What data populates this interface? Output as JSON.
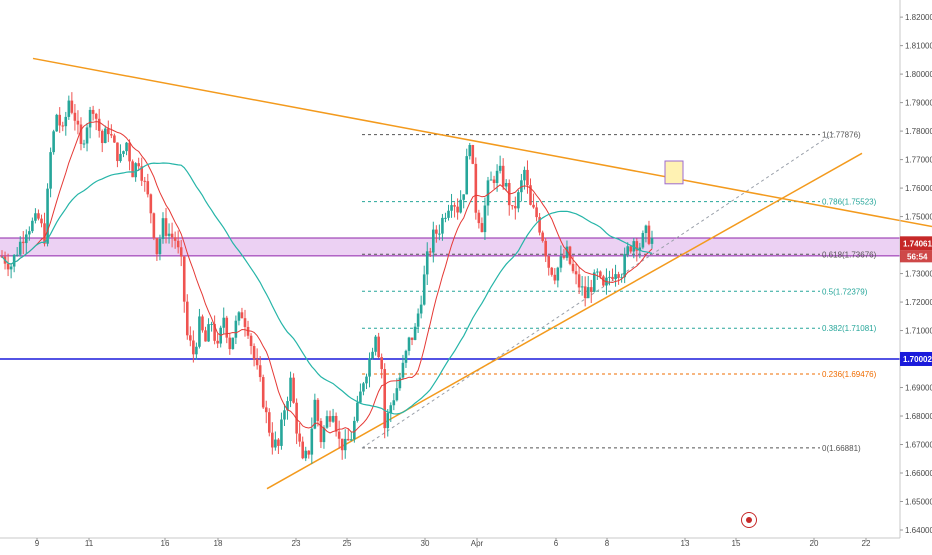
{
  "colors": {
    "background": "#ffffff",
    "up_candle": "#26a69a",
    "down_candle": "#ef5350",
    "fast_ma": "#e53935",
    "slow_ma": "#26b5a8",
    "trendline": "#f39a1d",
    "fib_level": "#3c3c3c",
    "zone_fill": "#c97bdc",
    "zone_border": "#8e24aa",
    "support_line": "#1a1adb",
    "projection": "#9aa0aa",
    "price_tag_current": "#c62828",
    "price_tag_level": "#1a1adb"
  },
  "chart_data": {
    "type": "candlestick",
    "instrument": "price chart",
    "ylim": [
      1.64,
      1.8225
    ],
    "y_ticks": [
      "1.82000",
      "1.81000",
      "1.80000",
      "1.79000",
      "1.78000",
      "1.77000",
      "1.76000",
      "1.75000",
      "1.74000",
      "1.73000",
      "1.72000",
      "1.71000",
      "1.70000",
      "1.69000",
      "1.68000",
      "1.67000",
      "1.66000",
      "1.65000",
      "1.64000"
    ],
    "x_ticks": [
      "9",
      "11",
      "16",
      "18",
      "23",
      "25",
      "30",
      "Apr",
      "6",
      "8",
      "13",
      "15",
      "20",
      "22"
    ],
    "price_path": [
      [
        0,
        1.736
      ],
      [
        3,
        1.733
      ],
      [
        8,
        1.746
      ],
      [
        12,
        1.749
      ],
      [
        14,
        1.743
      ],
      [
        16,
        1.772
      ],
      [
        18,
        1.786
      ],
      [
        20,
        1.779
      ],
      [
        22,
        1.791
      ],
      [
        24,
        1.785
      ],
      [
        26,
        1.774
      ],
      [
        28,
        1.783
      ],
      [
        30,
        1.789
      ],
      [
        33,
        1.776
      ],
      [
        35,
        1.781
      ],
      [
        37,
        1.774
      ],
      [
        39,
        1.77
      ],
      [
        41,
        1.776
      ],
      [
        43,
        1.766
      ],
      [
        45,
        1.77
      ],
      [
        47,
        1.761
      ],
      [
        49,
        1.752
      ],
      [
        51,
        1.738
      ],
      [
        53,
        1.747
      ],
      [
        55,
        1.744
      ],
      [
        57,
        1.742
      ],
      [
        59,
        1.733
      ],
      [
        61,
        1.708
      ],
      [
        63,
        1.702
      ],
      [
        65,
        1.712
      ],
      [
        67,
        1.706
      ],
      [
        69,
        1.713
      ],
      [
        71,
        1.703
      ],
      [
        73,
        1.715
      ],
      [
        75,
        1.705
      ],
      [
        77,
        1.712
      ],
      [
        79,
        1.716
      ],
      [
        81,
        1.711
      ],
      [
        83,
        1.7
      ],
      [
        85,
        1.691
      ],
      [
        87,
        1.68
      ],
      [
        89,
        1.671
      ],
      [
        91,
        1.669
      ],
      [
        93,
        1.683
      ],
      [
        95,
        1.692
      ],
      [
        97,
        1.676
      ],
      [
        99,
        1.663
      ],
      [
        101,
        1.668
      ],
      [
        103,
        1.685
      ],
      [
        105,
        1.672
      ],
      [
        107,
        1.679
      ],
      [
        109,
        1.683
      ],
      [
        111,
        1.671
      ],
      [
        113,
        1.669
      ],
      [
        115,
        1.673
      ],
      [
        117,
        1.682
      ],
      [
        119,
        1.693
      ],
      [
        121,
        1.7
      ],
      [
        123,
        1.71
      ],
      [
        124,
        1.703
      ],
      [
        125,
        1.697
      ],
      [
        126,
        1.676
      ],
      [
        128,
        1.684
      ],
      [
        130,
        1.69
      ],
      [
        132,
        1.697
      ],
      [
        134,
        1.706
      ],
      [
        136,
        1.71
      ],
      [
        138,
        1.722
      ],
      [
        140,
        1.735
      ],
      [
        142,
        1.743
      ],
      [
        144,
        1.746
      ],
      [
        146,
        1.752
      ],
      [
        148,
        1.757
      ],
      [
        150,
        1.753
      ],
      [
        152,
        1.76
      ],
      [
        154,
        1.778
      ],
      [
        156,
        1.753
      ],
      [
        158,
        1.747
      ],
      [
        160,
        1.76
      ],
      [
        162,
        1.764
      ],
      [
        164,
        1.765
      ],
      [
        166,
        1.76
      ],
      [
        168,
        1.751
      ],
      [
        170,
        1.757
      ],
      [
        172,
        1.766
      ],
      [
        174,
        1.753
      ],
      [
        176,
        1.75
      ],
      [
        178,
        1.743
      ],
      [
        180,
        1.733
      ],
      [
        182,
        1.73
      ],
      [
        184,
        1.734
      ],
      [
        186,
        1.737
      ],
      [
        188,
        1.73
      ],
      [
        190,
        1.726
      ],
      [
        192,
        1.722
      ],
      [
        194,
        1.726
      ],
      [
        196,
        1.729
      ],
      [
        198,
        1.724
      ],
      [
        200,
        1.729
      ],
      [
        202,
        1.732
      ],
      [
        204,
        1.731
      ],
      [
        206,
        1.738
      ],
      [
        208,
        1.742
      ],
      [
        210,
        1.74
      ],
      [
        212,
        1.744
      ],
      [
        214,
        1.742
      ]
    ],
    "horizontal_levels": [
      {
        "label": "1.70002",
        "price": 1.70002
      },
      {
        "label": "1.74061",
        "price": 1.74061
      }
    ],
    "zone": {
      "top": 1.7425,
      "bottom": 1.7362
    },
    "fib_levels": [
      {
        "label": "1(1.77876)",
        "price": 1.77876
      },
      {
        "label": "0.786(1.75523)",
        "price": 1.75523
      },
      {
        "label": "0.618(1.73676)",
        "price": 1.73676
      },
      {
        "label": "0.5(1.72379)",
        "price": 1.72379
      },
      {
        "label": "0.382(1.71081)",
        "price": 1.71081
      },
      {
        "label": "0.236(1.69476)",
        "price": 1.69476
      },
      {
        "label": "0(1.66881)",
        "price": 1.66881
      }
    ],
    "current_price_tag": {
      "price": "1.74061",
      "countdown": "56:54"
    },
    "level_price_tag": {
      "price": "1.70002"
    }
  }
}
